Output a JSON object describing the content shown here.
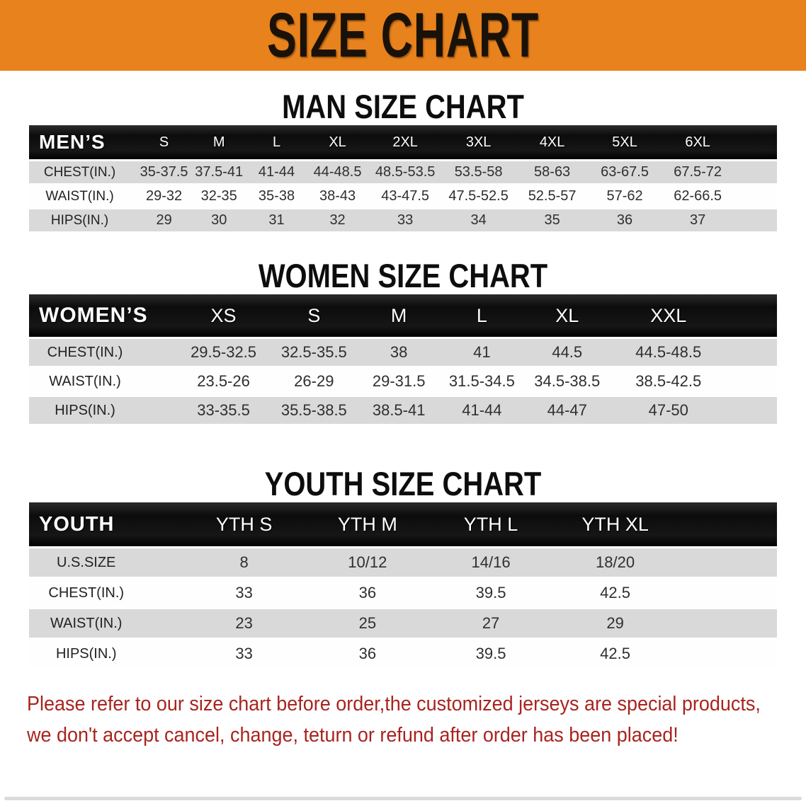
{
  "banner": {
    "title": "SIZE CHART",
    "bg_color": "#e8821d",
    "text_color": "#1a1208"
  },
  "men": {
    "heading": "MAN SIZE CHART",
    "label": "MEN’S",
    "columns": [
      "S",
      "M",
      "L",
      "XL",
      "2XL",
      "3XL",
      "4XL",
      "5XL",
      "6XL"
    ],
    "rows": [
      {
        "label": "CHEST(IN.)",
        "values": [
          "35-37.5",
          "37.5-41",
          "41-44",
          "44-48.5",
          "48.5-53.5",
          "53.5-58",
          "58-63",
          "63-67.5",
          "67.5-72"
        ]
      },
      {
        "label": "WAIST(IN.)",
        "values": [
          "29-32",
          "32-35",
          "35-38",
          "38-43",
          "43-47.5",
          "47.5-52.5",
          "52.5-57",
          "57-62",
          "62-66.5"
        ]
      },
      {
        "label": "HIPS(IN.)",
        "values": [
          "29",
          "30",
          "31",
          "32",
          "33",
          "34",
          "35",
          "36",
          "37"
        ]
      }
    ]
  },
  "women": {
    "heading": "WOMEN SIZE CHART",
    "label": "WOMEN’S",
    "columns": [
      "XS",
      "S",
      "M",
      "L",
      "XL",
      "XXL"
    ],
    "rows": [
      {
        "label": "CHEST(IN.)",
        "values": [
          "29.5-32.5",
          "32.5-35.5",
          "38",
          "41",
          "44.5",
          "44.5-48.5"
        ]
      },
      {
        "label": "WAIST(IN.)",
        "values": [
          "23.5-26",
          "26-29",
          "29-31.5",
          "31.5-34.5",
          "34.5-38.5",
          "38.5-42.5"
        ]
      },
      {
        "label": "HIPS(IN.)",
        "values": [
          "33-35.5",
          "35.5-38.5",
          "38.5-41",
          "41-44",
          "44-47",
          "47-50"
        ]
      }
    ]
  },
  "youth": {
    "heading": "YOUTH SIZE CHART",
    "label": "YOUTH",
    "columns": [
      "YTH S",
      "YTH M",
      "YTH L",
      "YTH XL"
    ],
    "rows": [
      {
        "label": "U.S.SIZE",
        "values": [
          "8",
          "10/12",
          "14/16",
          "18/20"
        ]
      },
      {
        "label": "CHEST(IN.)",
        "values": [
          "33",
          "36",
          "39.5",
          "42.5"
        ]
      },
      {
        "label": "WAIST(IN.)",
        "values": [
          "23",
          "25",
          "27",
          "29"
        ]
      },
      {
        "label": "HIPS(IN.)",
        "values": [
          "33",
          "36",
          "39.5",
          "42.5"
        ]
      }
    ]
  },
  "note": {
    "line1": "Please refer to our size chart before order,the customized jerseys are special products,",
    "line2": "we don't accept cancel, change, teturn or refund after order has been placed!",
    "color": "#a8241f"
  }
}
